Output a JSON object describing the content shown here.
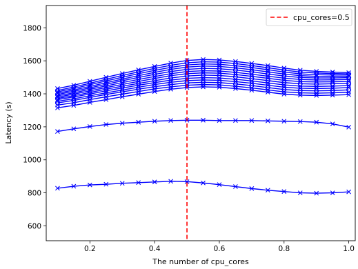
{
  "chart_data": {
    "type": "line",
    "title": "",
    "xlabel": "The number of cpu_cores",
    "ylabel": "Latency (s)",
    "xlim": [
      0.065,
      1.02
    ],
    "ylim": [
      510,
      1935
    ],
    "xticks": [
      0.2,
      0.4,
      0.6,
      0.8,
      1.0
    ],
    "xtick_labels": [
      "0.2",
      "0.4",
      "0.6",
      "0.8",
      "1.0"
    ],
    "yticks": [
      600,
      800,
      1000,
      1200,
      1400,
      1600,
      1800
    ],
    "ytick_labels": [
      "600",
      "800",
      "1000",
      "1200",
      "1400",
      "1600",
      "1800"
    ],
    "grid": false,
    "series_color": "#0000ff",
    "vline": {
      "x": 0.5,
      "color": "#ff0000",
      "style": "dashed",
      "label": "cpu_cores=0.5"
    },
    "legend": {
      "placement": "top-right",
      "entries": [
        "cpu_cores=0.5"
      ]
    },
    "x": [
      0.1,
      0.15,
      0.2,
      0.25,
      0.3,
      0.35,
      0.4,
      0.45,
      0.5,
      0.55,
      0.6,
      0.65,
      0.7,
      0.75,
      0.8,
      0.85,
      0.9,
      0.95,
      1.0
    ],
    "series": [
      {
        "marker": "x",
        "values": [
          828,
          840,
          848,
          852,
          858,
          862,
          866,
          870,
          868,
          860,
          850,
          838,
          826,
          816,
          808,
          800,
          798,
          800,
          806
        ]
      },
      {
        "marker": "x",
        "values": [
          1172,
          1188,
          1202,
          1214,
          1222,
          1228,
          1234,
          1238,
          1240,
          1240,
          1238,
          1238,
          1238,
          1236,
          1234,
          1232,
          1228,
          1218,
          1198
        ]
      },
      {
        "marker": "x",
        "values": [
          1315,
          1330,
          1348,
          1365,
          1382,
          1398,
          1414,
          1428,
          1438,
          1442,
          1440,
          1432,
          1422,
          1410,
          1398,
          1392,
          1390,
          1392,
          1395
        ]
      },
      {
        "marker": "x",
        "values": [
          1332,
          1346,
          1365,
          1382,
          1398,
          1414,
          1430,
          1442,
          1452,
          1456,
          1454,
          1446,
          1436,
          1424,
          1412,
          1406,
          1404,
          1406,
          1410
        ]
      },
      {
        "marker": "o",
        "values": [
          1345,
          1360,
          1378,
          1396,
          1412,
          1428,
          1443,
          1456,
          1466,
          1470,
          1468,
          1460,
          1450,
          1438,
          1426,
          1420,
          1418,
          1420,
          1424
        ]
      },
      {
        "marker": "x",
        "values": [
          1355,
          1370,
          1388,
          1406,
          1423,
          1440,
          1456,
          1470,
          1480,
          1484,
          1482,
          1474,
          1464,
          1452,
          1440,
          1434,
          1432,
          1434,
          1438
        ]
      },
      {
        "marker": "x",
        "values": [
          1365,
          1381,
          1399,
          1418,
          1435,
          1452,
          1468,
          1483,
          1494,
          1498,
          1496,
          1488,
          1478,
          1466,
          1454,
          1447,
          1445,
          1447,
          1450
        ]
      },
      {
        "marker": "o",
        "values": [
          1372,
          1389,
          1408,
          1428,
          1446,
          1463,
          1480,
          1496,
          1508,
          1513,
          1511,
          1503,
          1492,
          1480,
          1468,
          1461,
          1459,
          1461,
          1463
        ]
      },
      {
        "marker": "x",
        "values": [
          1380,
          1398,
          1418,
          1438,
          1457,
          1475,
          1493,
          1510,
          1522,
          1527,
          1525,
          1517,
          1506,
          1494,
          1482,
          1474,
          1472,
          1473,
          1475
        ]
      },
      {
        "marker": "x",
        "values": [
          1388,
          1406,
          1427,
          1448,
          1468,
          1487,
          1505,
          1522,
          1535,
          1540,
          1538,
          1530,
          1519,
          1507,
          1495,
          1487,
          1484,
          1485,
          1487
        ]
      },
      {
        "marker": "o",
        "values": [
          1396,
          1415,
          1436,
          1458,
          1479,
          1499,
          1518,
          1535,
          1548,
          1554,
          1552,
          1544,
          1533,
          1520,
          1508,
          1499,
          1496,
          1496,
          1498
        ]
      },
      {
        "marker": "x",
        "values": [
          1404,
          1423,
          1445,
          1467,
          1489,
          1510,
          1530,
          1548,
          1562,
          1568,
          1566,
          1557,
          1546,
          1533,
          1520,
          1510,
          1506,
          1505,
          1506
        ]
      },
      {
        "marker": "x",
        "values": [
          1412,
          1432,
          1455,
          1478,
          1500,
          1522,
          1542,
          1560,
          1575,
          1581,
          1579,
          1570,
          1559,
          1546,
          1532,
          1521,
          1516,
          1514,
          1514
        ]
      },
      {
        "marker": "o",
        "values": [
          1420,
          1441,
          1464,
          1488,
          1511,
          1533,
          1554,
          1573,
          1588,
          1594,
          1592,
          1583,
          1571,
          1558,
          1544,
          1532,
          1526,
          1523,
          1521
        ]
      },
      {
        "marker": "x",
        "values": [
          1432,
          1452,
          1476,
          1500,
          1523,
          1545,
          1566,
          1586,
          1602,
          1608,
          1605,
          1596,
          1584,
          1571,
          1556,
          1543,
          1536,
          1532,
          1528
        ]
      }
    ]
  }
}
